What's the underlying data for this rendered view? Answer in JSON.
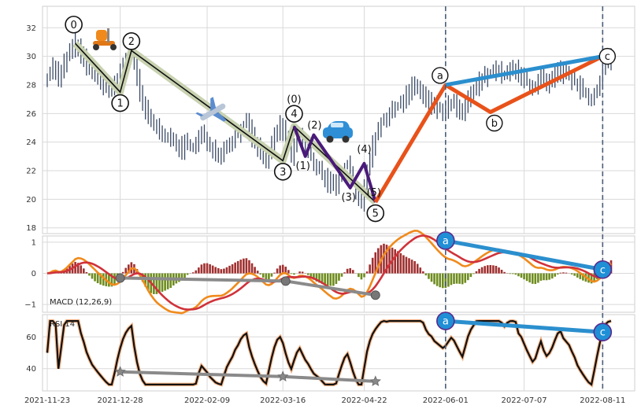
{
  "chart_data": {
    "type": "financial-elliott-wave",
    "x_tick_labels": [
      "2021-11-23",
      "2021-12-28",
      "2022-02-09",
      "2022-03-16",
      "2022-04-22",
      "2022-06-01",
      "2022-07-07",
      "2022-08-11"
    ],
    "x_tick_index": [
      0,
      26,
      57,
      84,
      113,
      142,
      170,
      198
    ],
    "n_bars": 202,
    "price_panel": {
      "ylim": [
        17.6,
        33.5
      ],
      "yticks": [
        18,
        20,
        22,
        24,
        26,
        28,
        30,
        32
      ],
      "closes": [
        28.6,
        28.9,
        29.3,
        29.0,
        28.4,
        28.8,
        29.5,
        29.9,
        30.3,
        30.6,
        30.9,
        30.5,
        30.1,
        29.8,
        29.4,
        29.1,
        28.8,
        28.6,
        28.4,
        28.2,
        28.0,
        27.8,
        27.6,
        27.5,
        27.9,
        28.4,
        28.9,
        29.4,
        29.8,
        30.1,
        30.3,
        29.4,
        28.4,
        27.4,
        26.7,
        26.2,
        25.7,
        25.4,
        25.2,
        25.0,
        24.9,
        24.7,
        24.4,
        24.2,
        24.0,
        24.1,
        23.9,
        23.7,
        23.5,
        23.8,
        24.0,
        23.7,
        23.5,
        23.8,
        24.2,
        24.5,
        24.3,
        24.1,
        23.8,
        23.6,
        23.4,
        23.3,
        23.2,
        23.5,
        23.8,
        24.0,
        24.2,
        24.5,
        24.7,
        25.0,
        25.2,
        25.3,
        24.8,
        24.4,
        24.0,
        23.6,
        23.2,
        22.9,
        22.7,
        23.2,
        23.8,
        24.4,
        24.9,
        25.1,
        24.8,
        24.2,
        23.6,
        23.1,
        23.6,
        24.1,
        24.4,
        24.0,
        23.6,
        23.3,
        22.9,
        22.5,
        22.3,
        22.1,
        21.8,
        21.5,
        21.2,
        21.0,
        20.8,
        21.1,
        21.5,
        21.9,
        22.3,
        22.5,
        22.0,
        21.3,
        20.6,
        20.0,
        19.8,
        20.8,
        22.0,
        23.0,
        23.8,
        24.4,
        24.9,
        25.4,
        25.7,
        25.6,
        25.9,
        26.1,
        26.4,
        26.6,
        26.8,
        27.0,
        27.3,
        27.6,
        27.8,
        28.0,
        27.8,
        27.5,
        27.3,
        27.0,
        26.8,
        26.7,
        26.5,
        26.4,
        26.3,
        26.2,
        26.3,
        26.5,
        26.7,
        26.6,
        26.4,
        26.2,
        26.0,
        26.4,
        26.9,
        27.3,
        27.6,
        27.9,
        28.2,
        28.4,
        28.6,
        28.8,
        28.9,
        29.0,
        29.1,
        28.9,
        28.7,
        28.6,
        28.8,
        28.9,
        29.1,
        29.0,
        28.7,
        28.6,
        28.4,
        28.2,
        28.0,
        27.8,
        27.9,
        28.2,
        28.5,
        28.2,
        28.0,
        28.1,
        28.3,
        28.6,
        28.9,
        29.0,
        28.8,
        28.7,
        28.6,
        28.4,
        28.2,
        27.9,
        27.7,
        27.5,
        27.3,
        27.1,
        26.9,
        27.3,
        27.8,
        28.4,
        29.2,
        29.6,
        29.8,
        30.0
      ],
      "waves": [
        {
          "labels": [
            "0",
            "1",
            "2",
            "3",
            "4",
            "5"
          ],
          "points": [
            [
              10,
              30.9
            ],
            [
              26,
              27.5
            ],
            [
              30,
              30.4
            ],
            [
              84,
              22.7
            ],
            [
              88,
              25.1
            ],
            [
              117,
              19.8
            ]
          ],
          "color": "#111111",
          "halo": "#c8d2b0"
        },
        {
          "labels": [
            "(0)",
            "(1)",
            "(2)",
            "(3)",
            "(4)",
            "(5)"
          ],
          "points": [
            [
              88,
              25.1
            ],
            [
              92,
              23.0
            ],
            [
              95,
              24.5
            ],
            [
              108,
              20.8
            ],
            [
              113,
              22.5
            ],
            [
              117,
              19.8
            ]
          ],
          "color": "#4a1a7a"
        },
        {
          "labels": [
            "a",
            "b",
            "c"
          ],
          "points": [
            [
              117,
              19.8
            ],
            [
              142,
              28.0
            ],
            [
              158,
              26.1
            ],
            [
              198,
              30.0
            ]
          ],
          "color": "#e8521a"
        }
      ],
      "trendline_label_end": "c",
      "trendline": [
        [
          142,
          28.0
        ],
        [
          198,
          30.0
        ]
      ],
      "trendline_color": "#2b8fce"
    },
    "macd_panel": {
      "label": "MACD (12,26,9)",
      "ylim": [
        -1.25,
        1.2
      ],
      "yticks": [
        -1,
        0,
        1
      ],
      "divergence_points": [
        [
          26,
          -0.15
        ],
        [
          85,
          -0.25
        ],
        [
          117,
          -0.7
        ]
      ],
      "trendline_labels": [
        "a",
        "c"
      ],
      "trendline": [
        [
          142,
          1.05
        ],
        [
          198,
          0.12
        ]
      ]
    },
    "rsi_panel": {
      "label": "RSI 14",
      "ylim": [
        26,
        74
      ],
      "yticks": [
        40,
        60
      ],
      "divergence_points": [
        [
          26,
          38
        ],
        [
          84,
          35
        ],
        [
          117,
          32
        ]
      ],
      "trendline_labels": [
        "a",
        "c"
      ],
      "trendline": [
        [
          142,
          70
        ],
        [
          198,
          63
        ]
      ]
    },
    "vlines": [
      142,
      198
    ],
    "annotations": [
      "scooter-emoji",
      "airplane-emoji",
      "car-emoji"
    ]
  },
  "colors": {
    "grid": "#d9d9d9",
    "candle": "#3a4a66",
    "macd_line": "#f08a1c",
    "signal_line": "#d0323a",
    "hist_pos": "#a03030",
    "hist_neg": "#6e8c1e",
    "rsi_line": "#111111",
    "rsi_halo": "#f4b183",
    "divergence": "#8a8a8a",
    "vline": "#4a5d78"
  }
}
